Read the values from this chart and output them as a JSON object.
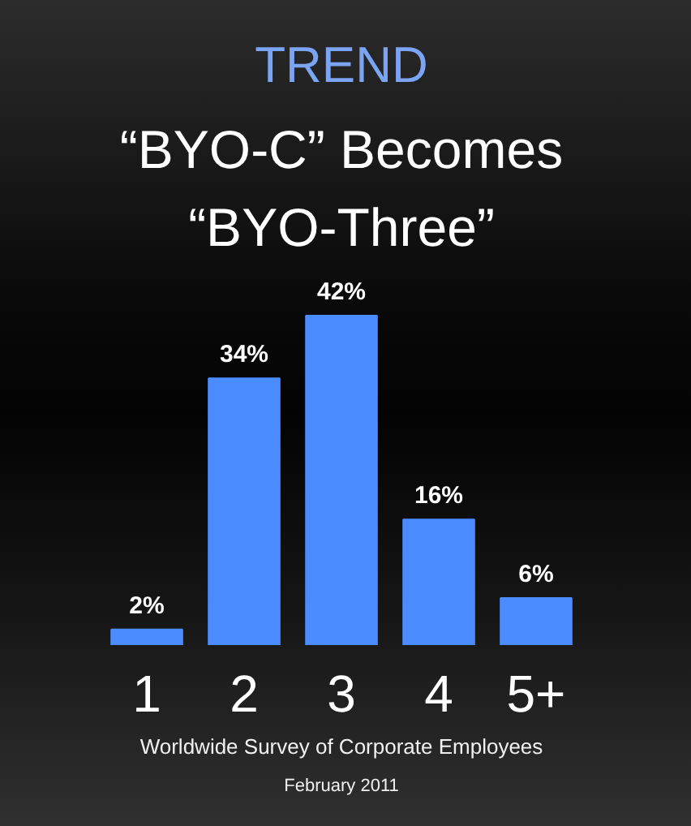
{
  "chart_data": {
    "type": "bar",
    "title": "TREND",
    "subtitle": "“BYO-C” Becomes “BYO-Three”",
    "categories": [
      "1",
      "2",
      "3",
      "4",
      "5+"
    ],
    "values": [
      2,
      34,
      42,
      16,
      6
    ],
    "value_labels": [
      "2%",
      "34%",
      "42%",
      "16%",
      "6%"
    ],
    "color": "#4a8cff",
    "annotations": [
      "Worldwide Survey of Corporate Employees",
      "February 2011"
    ]
  }
}
